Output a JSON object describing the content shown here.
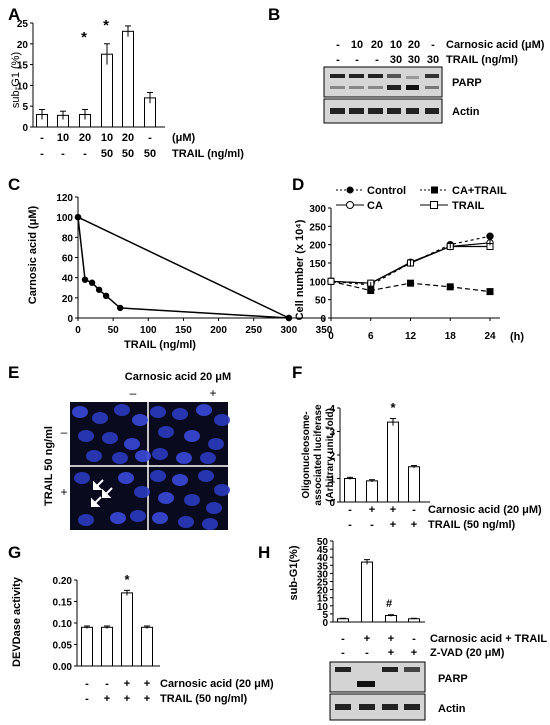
{
  "panels": {
    "A": {
      "letter": "A",
      "ylabel": "sub-G1 (%)",
      "ticks": [
        "0",
        "5",
        "10",
        "15",
        "20",
        "25"
      ],
      "row1": [
        "-",
        "10",
        "20",
        "10",
        "20",
        "-"
      ],
      "row1_unit": "(μM)",
      "row2": [
        "-",
        "-",
        "-",
        "50",
        "50",
        "50"
      ],
      "row2_unit": "TRAIL (ng/ml)",
      "star": "*"
    },
    "B": {
      "letter": "B",
      "header_row1": [
        "-",
        "10",
        "20",
        "10",
        "20",
        "-"
      ],
      "label_row1": "Carnosic acid (μM)",
      "header_row2": [
        "-",
        "-",
        "-",
        "30",
        "30",
        "30"
      ],
      "label_row2": "TRAIL (ng/ml)",
      "blot1": "PARP",
      "blot2": "Actin"
    },
    "C": {
      "letter": "C",
      "ylabel": "Carnosic acid (μM)",
      "xlabel": "TRAIL (ng/ml)",
      "yticks": [
        "0",
        "20",
        "40",
        "60",
        "80",
        "100",
        "120"
      ],
      "xticks": [
        "0",
        "50",
        "100",
        "150",
        "200",
        "250",
        "300",
        "350"
      ]
    },
    "D": {
      "letter": "D",
      "ylabel": "Cell number (x 10⁴)",
      "xlabel": "(h)",
      "yticks": [
        "0",
        "50",
        "100",
        "150",
        "200",
        "250",
        "300"
      ],
      "xticks": [
        "0",
        "6",
        "12",
        "18",
        "24"
      ],
      "legend": [
        "Control",
        "CA+TRAIL",
        "CA",
        "TRAIL"
      ]
    },
    "E": {
      "letter": "E",
      "title": "Carnosic acid 20 μM",
      "col_minus": "–",
      "col_plus": "+",
      "row_label": "TRAIL 50 ng/ml",
      "row_minus": "–",
      "row_plus": "+"
    },
    "F": {
      "letter": "F",
      "ylabel": "Oligonucleosome-associated luciferase (Arbitrary unit, fold)",
      "ticks": [
        "0",
        "1",
        "2",
        "3",
        "4"
      ],
      "row1": [
        "-",
        "+",
        "+",
        "-"
      ],
      "row1_label": "Carnosic acid (20 μM)",
      "row2": [
        "-",
        "-",
        "+",
        "+"
      ],
      "row2_label": "TRAIL (50 ng/ml)",
      "star": "*"
    },
    "G": {
      "letter": "G",
      "ylabel": "DEVDase activity",
      "ticks": [
        "0.00",
        "0.05",
        "0.10",
        "0.15",
        "0.20"
      ],
      "row1": [
        "-",
        "-",
        "+",
        "+"
      ],
      "row1_label": "Carnosic acid (20 μM)",
      "row2": [
        "-",
        "+",
        "+",
        "+"
      ],
      "row2_label": "TRAIL (50 ng/ml)",
      "star": "*"
    },
    "H": {
      "letter": "H",
      "ylabel": "sub-G1(%)",
      "ticks": [
        "0",
        "5",
        "10",
        "15",
        "20",
        "25",
        "30",
        "35",
        "40",
        "45",
        "50"
      ],
      "row1": [
        "-",
        "+",
        "+",
        "-"
      ],
      "row1_label": "Carnosic acid + TRAIL",
      "row2": [
        "-",
        "-",
        "+",
        "+"
      ],
      "row2_label": "Z-VAD (20 μM)",
      "hash": "#",
      "blot1": "PARP",
      "blot2": "Actin"
    }
  },
  "chart_data": [
    {
      "panel": "A",
      "type": "bar",
      "ylabel": "sub-G1 (%)",
      "ylim": [
        0,
        25
      ],
      "categories": [
        "1",
        "2",
        "3",
        "4",
        "5",
        "6"
      ],
      "values": [
        3,
        2.8,
        3,
        17.5,
        23,
        7
      ],
      "errors": [
        1.2,
        1,
        1.2,
        2.5,
        1.3,
        1.3
      ]
    },
    {
      "panel": "C",
      "type": "line",
      "xlabel": "TRAIL (ng/ml)",
      "ylabel": "Carnosic acid (μM)",
      "xlim": [
        0,
        350
      ],
      "ylim": [
        0,
        120
      ],
      "series": [
        {
          "x": [
            0,
            300
          ],
          "y": [
            100,
            0
          ]
        },
        {
          "x": [
            0,
            10,
            20,
            30,
            40,
            60,
            300
          ],
          "y": [
            100,
            38,
            35,
            28,
            22,
            10,
            0
          ]
        }
      ]
    },
    {
      "panel": "D",
      "type": "line",
      "xlabel": "(h)",
      "ylabel": "Cell number (x 10⁴)",
      "xlim": [
        0,
        24
      ],
      "ylim": [
        0,
        300
      ],
      "x": [
        0,
        6,
        12,
        18,
        24
      ],
      "series": [
        {
          "name": "Control",
          "values": [
            100,
            90,
            150,
            200,
            223
          ]
        },
        {
          "name": "CA+TRAIL",
          "values": [
            100,
            75,
            95,
            85,
            72
          ]
        },
        {
          "name": "CA",
          "values": [
            100,
            95,
            152,
            195,
            205
          ]
        },
        {
          "name": "TRAIL",
          "values": [
            100,
            95,
            150,
            195,
            195
          ]
        }
      ]
    },
    {
      "panel": "F",
      "type": "bar",
      "ylim": [
        0,
        4
      ],
      "categories": [
        "1",
        "2",
        "3",
        "4"
      ],
      "values": [
        1.0,
        0.9,
        3.4,
        1.5
      ],
      "errors": [
        0.05,
        0.05,
        0.15,
        0.05
      ]
    },
    {
      "panel": "G",
      "type": "bar",
      "ylabel": "DEVDase activity",
      "ylim": [
        0,
        0.2
      ],
      "categories": [
        "1",
        "2",
        "3",
        "4"
      ],
      "values": [
        0.09,
        0.09,
        0.17,
        0.09
      ],
      "errors": [
        0.003,
        0.003,
        0.006,
        0.003
      ]
    },
    {
      "panel": "H",
      "type": "bar",
      "ylabel": "sub-G1(%)",
      "ylim": [
        0,
        50
      ],
      "categories": [
        "1",
        "2",
        "3",
        "4"
      ],
      "values": [
        2,
        37,
        4,
        2
      ],
      "errors": [
        0.3,
        1.5,
        0.5,
        0.3
      ]
    }
  ]
}
